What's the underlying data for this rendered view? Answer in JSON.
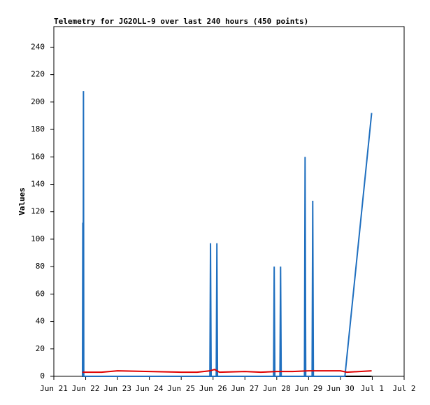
{
  "chart_data": {
    "type": "line",
    "title": "Telemetry for JG2OLL-9 over last 240 hours (450 points)",
    "y_label": "Values",
    "xlim": [
      0,
      11
    ],
    "ylim": [
      0,
      255
    ],
    "xticks": [
      {
        "value": 0,
        "label": "Jun 21"
      },
      {
        "value": 1,
        "label": "Jun 22"
      },
      {
        "value": 2,
        "label": "Jun 23"
      },
      {
        "value": 3,
        "label": "Jun 24"
      },
      {
        "value": 4,
        "label": "Jun 25"
      },
      {
        "value": 5,
        "label": "Jun 26"
      },
      {
        "value": 6,
        "label": "Jun 27"
      },
      {
        "value": 7,
        "label": "Jun 28"
      },
      {
        "value": 8,
        "label": "Jun 29"
      },
      {
        "value": 9,
        "label": "Jun 30"
      },
      {
        "value": 10,
        "label": "Jul 1"
      },
      {
        "value": 11,
        "label": "Jul 2"
      }
    ],
    "yticks": [
      0,
      20,
      40,
      60,
      80,
      100,
      120,
      140,
      160,
      180,
      200,
      220,
      240
    ],
    "series": [
      {
        "color": "#000000",
        "x": [
          0.9,
          9.98
        ],
        "values": [
          0,
          0
        ]
      },
      {
        "color": "#1f6fbf",
        "x": [
          0.9,
          0.91,
          0.92,
          0.93,
          0.94,
          4.9,
          4.92,
          4.94,
          5.1,
          5.12,
          5.14,
          6.9,
          6.92,
          6.94,
          7.1,
          7.12,
          7.14,
          7.87,
          7.89,
          7.91,
          8.11,
          8.13,
          8.15,
          9.14,
          9.98
        ],
        "values": [
          0,
          112,
          0,
          208,
          0,
          0,
          97,
          0,
          0,
          97,
          0,
          0,
          80,
          0,
          0,
          80,
          0,
          0,
          160,
          0,
          0,
          128,
          0,
          0,
          192
        ]
      },
      {
        "color": "#e00000",
        "x": [
          0.9,
          1.5,
          2,
          3,
          4,
          4.5,
          4.9,
          5.05,
          5.2,
          6,
          6.5,
          7,
          7.5,
          8,
          9,
          9.2,
          9.98
        ],
        "values": [
          3,
          3,
          4,
          3.5,
          3,
          3,
          4,
          5,
          3,
          3.5,
          3,
          3.5,
          3.5,
          4,
          4,
          3,
          4
        ]
      }
    ]
  }
}
